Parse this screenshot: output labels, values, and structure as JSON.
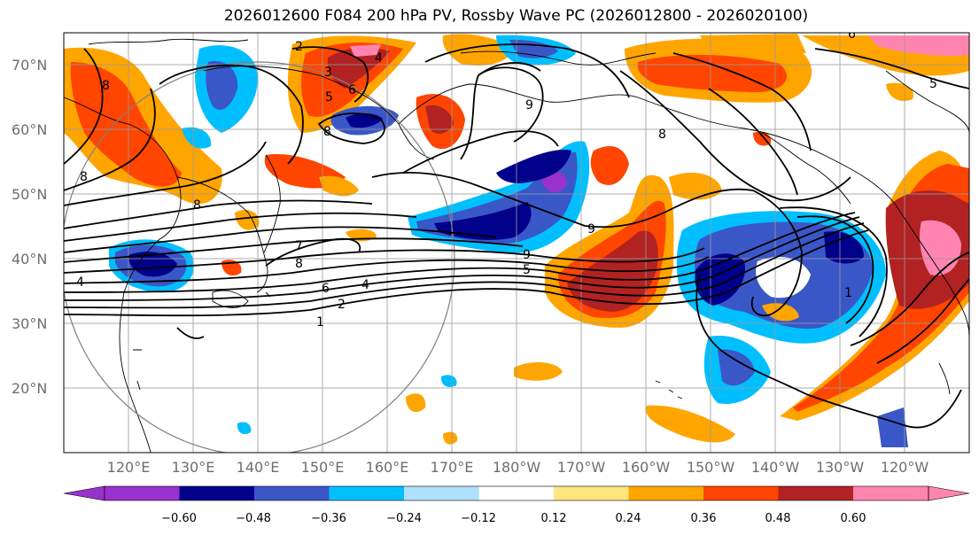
{
  "title": "2026012600 F084 200 hPa PV, Rossby Wave PC (2026012800 - 2026020100)",
  "lat_labels": [
    "70°N",
    "60°N",
    "50°N",
    "40°N",
    "30°N",
    "20°N"
  ],
  "lon_labels": [
    "120°E",
    "130°E",
    "140°E",
    "150°E",
    "160°E",
    "170°E",
    "180°W",
    "170°W",
    "160°W",
    "150°W",
    "140°W",
    "130°W",
    "120°W"
  ],
  "colorbar": {
    "ticks": [
      "−0.60",
      "−0.48",
      "−0.36",
      "−0.24",
      "−0.12",
      "0.12",
      "0.24",
      "0.36",
      "0.48",
      "0.60"
    ],
    "colors": [
      "#9932cc",
      "#00008b",
      "#3a57c8",
      "#00bfff",
      "#b0e0ff",
      "#ffffff",
      "#ffe680",
      "#ffa500",
      "#ff4500",
      "#b22222",
      "#ff85b0"
    ]
  },
  "contour_labels": [
    "2",
    "3",
    "4",
    "5",
    "6",
    "8",
    "8",
    "8",
    "4",
    "8",
    "9",
    "9",
    "8",
    "6",
    "4",
    "2",
    "1",
    "7",
    "8",
    "9",
    "5",
    "1",
    "6",
    "5"
  ],
  "accent_colors": {
    "neg_strong": "#00008b",
    "pos_strong": "#b22222",
    "contour": "#000000",
    "grid": "#999999"
  }
}
